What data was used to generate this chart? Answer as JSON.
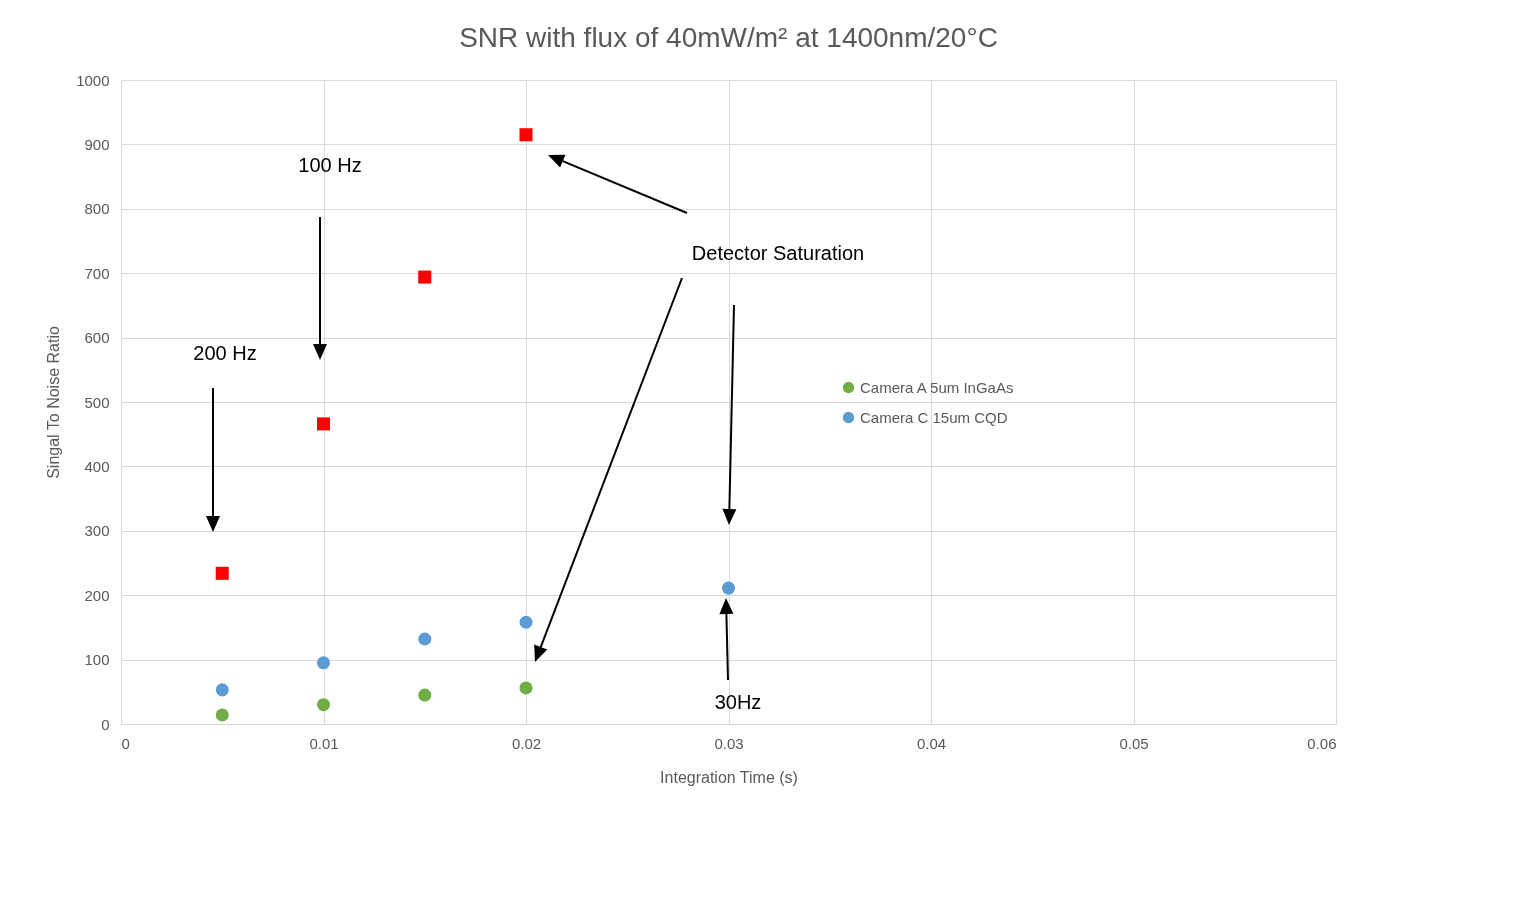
{
  "chart_data": {
    "type": "scatter",
    "title": "SNR  with flux of 40mW/m² at 1400nm/20°C",
    "xlabel": "Integration Time (s)",
    "ylabel": "Singal To Noise Ratio",
    "xlim": [
      0,
      0.06
    ],
    "xticks": [
      0,
      0.01,
      0.02,
      0.03,
      0.04,
      0.05,
      0.06
    ],
    "ylim": [
      0,
      1000
    ],
    "yticks": [
      0,
      100,
      200,
      300,
      400,
      500,
      600,
      700,
      800,
      900,
      1000
    ],
    "grid": true,
    "legend": "right",
    "series": [
      {
        "name": "Camera A 5um InGaAs",
        "color": "#70ad47",
        "marker": "circle",
        "x": [
          0.005,
          0.01,
          0.015,
          0.02
        ],
        "values": [
          14,
          30,
          45,
          56
        ]
      },
      {
        "color": "#ff0000",
        "marker": "square",
        "x": [
          0.005,
          0.01,
          0.015,
          0.02
        ],
        "values": [
          234,
          466,
          694,
          915
        ]
      },
      {
        "name": "Camera C 15um CQD",
        "color": "#5b9bd5",
        "marker": "circle",
        "x": [
          0.005,
          0.01,
          0.015,
          0.02,
          0.03
        ],
        "values": [
          53,
          95,
          132,
          158,
          211
        ]
      }
    ],
    "annotations": [
      "200 Hz",
      "100 Hz",
      "Detector Saturation",
      "30Hz"
    ]
  }
}
